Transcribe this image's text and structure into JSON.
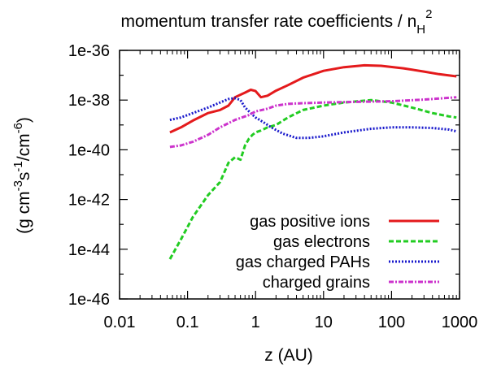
{
  "chart_data": {
    "type": "line",
    "title": "momentum transfer rate coefficients / n",
    "title_subscript": "H",
    "title_superscript": "2",
    "xlabel": "z (AU)",
    "ylabel": {
      "p1": "(g cm",
      "s1": "-3",
      "p2": "s",
      "s2": "-1",
      "p3": "/cm",
      "s3": "-6",
      "p4": ")"
    },
    "xscale": "log",
    "yscale": "log",
    "xlim": [
      0.01,
      1000
    ],
    "ylim": [
      1e-46,
      1e-36
    ],
    "xticks": [
      {
        "value": 0.01,
        "label": "0.01"
      },
      {
        "value": 0.1,
        "label": "0.1"
      },
      {
        "value": 1,
        "label": "1"
      },
      {
        "value": 10,
        "label": "10"
      },
      {
        "value": 100,
        "label": "100"
      },
      {
        "value": 1000,
        "label": "1000"
      }
    ],
    "yticks": [
      {
        "value": 1e-36,
        "label": "1e-36"
      },
      {
        "value": 1e-38,
        "label": "1e-38"
      },
      {
        "value": 1e-40,
        "label": "1e-40"
      },
      {
        "value": 1e-42,
        "label": "1e-42"
      },
      {
        "value": 1e-44,
        "label": "1e-44"
      },
      {
        "value": 1e-46,
        "label": "1e-46"
      }
    ],
    "legend_position": "bottom-right",
    "series": [
      {
        "name": "gas positive ions",
        "color": "#e41a1c",
        "dash": "solid",
        "points": [
          [
            0.055,
            5e-40
          ],
          [
            0.08,
            8e-40
          ],
          [
            0.12,
            1.5e-39
          ],
          [
            0.2,
            3e-39
          ],
          [
            0.3,
            4e-39
          ],
          [
            0.4,
            6e-39
          ],
          [
            0.5,
            1.3e-38
          ],
          [
            0.7,
            2e-38
          ],
          [
            0.85,
            2.6e-38
          ],
          [
            1.0,
            2.3e-38
          ],
          [
            1.2,
            1.3e-38
          ],
          [
            1.5,
            1.5e-38
          ],
          [
            2.0,
            2.4e-38
          ],
          [
            3.0,
            4e-38
          ],
          [
            5.0,
            8e-38
          ],
          [
            10,
            1.5e-37
          ],
          [
            20,
            2.1e-37
          ],
          [
            40,
            2.5e-37
          ],
          [
            70,
            2.4e-37
          ],
          [
            150,
            1.9e-37
          ],
          [
            300,
            1.4e-37
          ],
          [
            500,
            1.1e-37
          ],
          [
            900,
            9e-38
          ]
        ]
      },
      {
        "name": "gas electrons",
        "color": "#22cc22",
        "dash": "dashed",
        "points": [
          [
            0.055,
            4e-45
          ],
          [
            0.08,
            2.5e-44
          ],
          [
            0.12,
            2e-43
          ],
          [
            0.2,
            1.5e-42
          ],
          [
            0.3,
            5e-42
          ],
          [
            0.4,
            3e-41
          ],
          [
            0.5,
            5e-41
          ],
          [
            0.6,
            4e-41
          ],
          [
            0.7,
            1.5e-40
          ],
          [
            0.8,
            2.8e-40
          ],
          [
            0.9,
            4e-40
          ],
          [
            1.0,
            5e-40
          ],
          [
            1.2,
            6e-40
          ],
          [
            1.5,
            8e-40
          ],
          [
            2.0,
            1e-39
          ],
          [
            3.0,
            2e-39
          ],
          [
            5.0,
            4e-39
          ],
          [
            10,
            6e-39
          ],
          [
            20,
            8e-39
          ],
          [
            50,
            1e-38
          ],
          [
            100,
            8e-39
          ],
          [
            200,
            5e-39
          ],
          [
            400,
            3e-39
          ],
          [
            700,
            2.2e-39
          ],
          [
            900,
            2e-39
          ]
        ]
      },
      {
        "name": "gas charged PAHs",
        "color": "#1a1acc",
        "dash": "dotted",
        "points": [
          [
            0.055,
            1.6e-39
          ],
          [
            0.08,
            2e-39
          ],
          [
            0.12,
            3e-39
          ],
          [
            0.2,
            5e-39
          ],
          [
            0.3,
            8e-39
          ],
          [
            0.4,
            1.1e-38
          ],
          [
            0.5,
            1.2e-38
          ],
          [
            0.6,
            1e-38
          ],
          [
            0.7,
            5e-39
          ],
          [
            0.85,
            3e-39
          ],
          [
            1.0,
            2e-39
          ],
          [
            1.3,
            1.3e-39
          ],
          [
            1.7,
            8e-40
          ],
          [
            2.5,
            4.5e-40
          ],
          [
            4.0,
            3e-40
          ],
          [
            6.0,
            3e-40
          ],
          [
            10,
            3.5e-40
          ],
          [
            20,
            5e-40
          ],
          [
            50,
            7e-40
          ],
          [
            100,
            8e-40
          ],
          [
            200,
            8e-40
          ],
          [
            400,
            7.5e-40
          ],
          [
            700,
            6.5e-40
          ],
          [
            900,
            5.5e-40
          ]
        ]
      },
      {
        "name": "charged grains",
        "color": "#cc33cc",
        "dash": "dashdot",
        "points": [
          [
            0.055,
            1.3e-40
          ],
          [
            0.08,
            1.5e-40
          ],
          [
            0.12,
            2.1e-40
          ],
          [
            0.2,
            4e-40
          ],
          [
            0.3,
            8e-40
          ],
          [
            0.5,
            1.6e-39
          ],
          [
            0.8,
            2.5e-39
          ],
          [
            1.0,
            3.5e-39
          ],
          [
            1.5,
            4.5e-39
          ],
          [
            2.0,
            6e-39
          ],
          [
            3.0,
            7e-39
          ],
          [
            5.0,
            7.5e-39
          ],
          [
            10,
            8e-39
          ],
          [
            30,
            8.5e-39
          ],
          [
            100,
            9e-39
          ],
          [
            300,
            1.05e-38
          ],
          [
            900,
            1.3e-38
          ]
        ]
      }
    ]
  }
}
